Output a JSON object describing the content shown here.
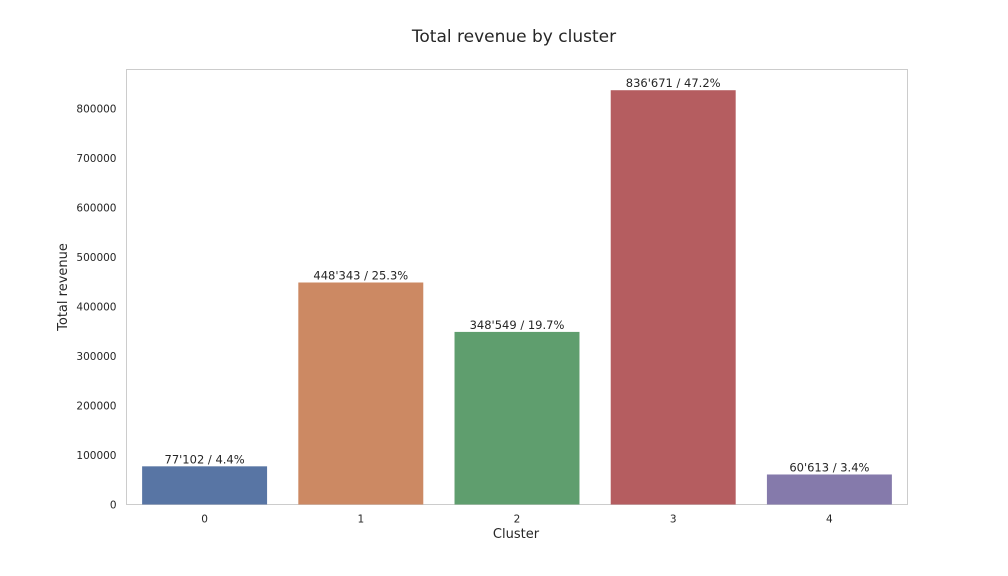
{
  "chart_data": {
    "type": "bar",
    "title": "Total revenue by cluster",
    "xlabel": "Cluster",
    "ylabel": "Total revenue",
    "categories": [
      "0",
      "1",
      "2",
      "3",
      "4"
    ],
    "values": [
      77102,
      448343,
      348549,
      836671,
      60613
    ],
    "data_labels": [
      "77'102 / 4.4%",
      "448'343 / 25.3%",
      "348'549 / 19.7%",
      "836'671 / 47.2%",
      "60'613 / 3.4%"
    ],
    "bar_colors": [
      "#5875a4",
      "#cc8963",
      "#5f9e6e",
      "#b55d60",
      "#857aab"
    ],
    "yticks": [
      0,
      100000,
      200000,
      300000,
      400000,
      500000,
      600000,
      700000,
      800000
    ],
    "ylim": [
      0,
      878505
    ],
    "grid": false,
    "legend": "none",
    "frame_color": "#cccccc",
    "text_color": "#262626"
  }
}
